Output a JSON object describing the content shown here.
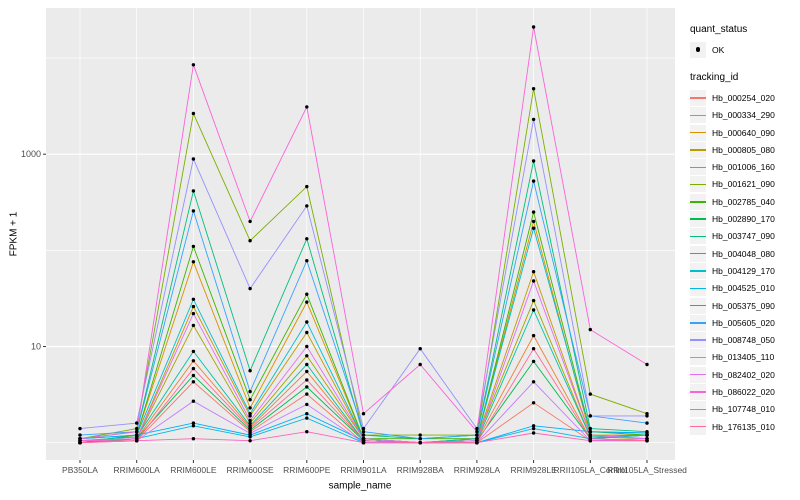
{
  "figure": {
    "background": "#FFFFFF",
    "panel_background": "#EBEBEB",
    "grid_color": "#FFFFFF",
    "tick_label_color": "#4D4D4D",
    "point_color": "#000000"
  },
  "legend": {
    "quant_status": {
      "title": "quant_status",
      "items": [
        {
          "label": "OK",
          "marker": "black-point"
        }
      ]
    },
    "tracking_id": {
      "title": "tracking_id"
    }
  },
  "chart_data": {
    "type": "line",
    "title": "",
    "xlabel": "sample_name",
    "ylabel": "FPKM + 1",
    "yscale": "log10",
    "ylim_log10": [
      -0.18,
      4.52
    ],
    "y_tick_labels": [
      "1000",
      "10"
    ],
    "y_tick_values": [
      1000,
      10
    ],
    "grid": true,
    "legend_position": "right",
    "point_marker": "black dot (quant_status = OK)",
    "x_categories": [
      "PB350LA",
      "RRIM600LA",
      "RRIM600LE",
      "RRIM600SE",
      "RRIM600PE",
      "RRIM901LA",
      "RRIM928BA",
      "RRIM928LA",
      "RRIM928LE",
      "RRII105LA_Control",
      "RRII105LA_Stressed"
    ],
    "series": [
      {
        "name": "Hb_000254_020",
        "color": "#F8766D",
        "values": [
          1.0,
          1.05,
          4.3,
          1.3,
          3.2,
          1.0,
          1.0,
          1.0,
          2.6,
          1.05,
          1.05
        ]
      },
      {
        "name": "Hb_000334_290",
        "color": "#EA8331",
        "values": [
          1.0,
          1.1,
          7.1,
          1.45,
          5.5,
          1.05,
          1.0,
          1.05,
          13,
          1.1,
          1.05
        ]
      },
      {
        "name": "Hb_000640_090",
        "color": "#D89000",
        "values": [
          1.0,
          1.2,
          76,
          2.3,
          29,
          1.1,
          1.0,
          1.1,
          200,
          1.2,
          1.2
        ]
      },
      {
        "name": "Hb_000805_080",
        "color": "#C09B00",
        "values": [
          1.0,
          1.1,
          26,
          1.9,
          14,
          1.1,
          1.0,
          1.1,
          60,
          1.2,
          1.1
        ]
      },
      {
        "name": "Hb_001006_160",
        "color": "#A3A500",
        "values": [
          1.0,
          1.1,
          16.6,
          1.6,
          8.0,
          1.1,
          1.0,
          1.1,
          30,
          1.15,
          1.1
        ]
      },
      {
        "name": "Hb_001621_090",
        "color": "#7CAE00",
        "values": [
          1.1,
          1.4,
          2650,
          126,
          460,
          1.2,
          1.2,
          1.2,
          4800,
          3.2,
          2.0
        ]
      },
      {
        "name": "Hb_002785_040",
        "color": "#39B600",
        "values": [
          1.0,
          1.2,
          110,
          2.8,
          35,
          1.1,
          1.1,
          1.1,
          250,
          1.3,
          1.2
        ]
      },
      {
        "name": "Hb_002890_170",
        "color": "#00BB4E",
        "values": [
          1.0,
          1.1,
          5.0,
          1.35,
          3.8,
          1.05,
          1.0,
          1.05,
          7.0,
          1.1,
          1.2
        ]
      },
      {
        "name": "Hb_003747_090",
        "color": "#00BF7D",
        "values": [
          1.1,
          1.3,
          415,
          5.6,
          132,
          1.2,
          1.1,
          1.2,
          850,
          1.4,
          1.3
        ]
      },
      {
        "name": "Hb_004048_080",
        "color": "#00C1A7",
        "values": [
          1.05,
          1.15,
          8.9,
          1.5,
          6.5,
          1.05,
          1.0,
          1.05,
          24,
          1.15,
          1.2
        ]
      },
      {
        "name": "Hb_004129_170",
        "color": "#00BED0",
        "values": [
          1.1,
          1.2,
          31,
          2.0,
          18,
          1.1,
          1.0,
          1.1,
          170,
          1.3,
          1.26
        ]
      },
      {
        "name": "Hb_004525_010",
        "color": "#00B8E5",
        "values": [
          1.05,
          1.1,
          1.5,
          1.15,
          1.8,
          1.0,
          1.0,
          1.0,
          1.4,
          1.1,
          1.2
        ]
      },
      {
        "name": "Hb_005375_090",
        "color": "#00ACFC",
        "values": [
          1.1,
          1.2,
          1.6,
          1.2,
          2.0,
          1.05,
          1.0,
          1.0,
          1.5,
          1.3,
          1.26
        ]
      },
      {
        "name": "Hb_005605_020",
        "color": "#35A2FF",
        "values": [
          1.2,
          1.3,
          257,
          3.4,
          78,
          1.3,
          1.1,
          1.2,
          525,
          1.9,
          1.6
        ]
      },
      {
        "name": "Hb_008748_050",
        "color": "#9590FF",
        "values": [
          1.4,
          1.6,
          890,
          40,
          290,
          1.4,
          9.5,
          1.4,
          2300,
          1.9,
          1.9
        ]
      },
      {
        "name": "Hb_013405_110",
        "color": "#C77CFF",
        "values": [
          1.0,
          1.05,
          2.7,
          1.25,
          2.5,
          1.0,
          1.0,
          1.0,
          4.3,
          1.05,
          1.1
        ]
      },
      {
        "name": "Hb_082402_020",
        "color": "#E76BF3",
        "values": [
          1.05,
          1.1,
          22,
          1.7,
          10,
          1.1,
          1.0,
          1.05,
          48,
          1.2,
          1.1
        ]
      },
      {
        "name": "Hb_086022_020",
        "color": "#FA62DB",
        "values": [
          1.1,
          1.3,
          8500,
          200,
          3100,
          2.0,
          6.5,
          1.3,
          21000,
          15,
          6.5
        ]
      },
      {
        "name": "Hb_107748_010",
        "color": "#FF62BC",
        "values": [
          1.05,
          1.05,
          1.1,
          1.05,
          1.3,
          1.0,
          1.0,
          1.0,
          1.26,
          1.05,
          1.05
        ]
      },
      {
        "name": "Hb_176135_010",
        "color": "#FF6A98",
        "values": [
          1.0,
          1.05,
          5.9,
          1.4,
          4.5,
          1.05,
          1.0,
          1.0,
          9.5,
          1.1,
          1.05
        ]
      }
    ]
  }
}
